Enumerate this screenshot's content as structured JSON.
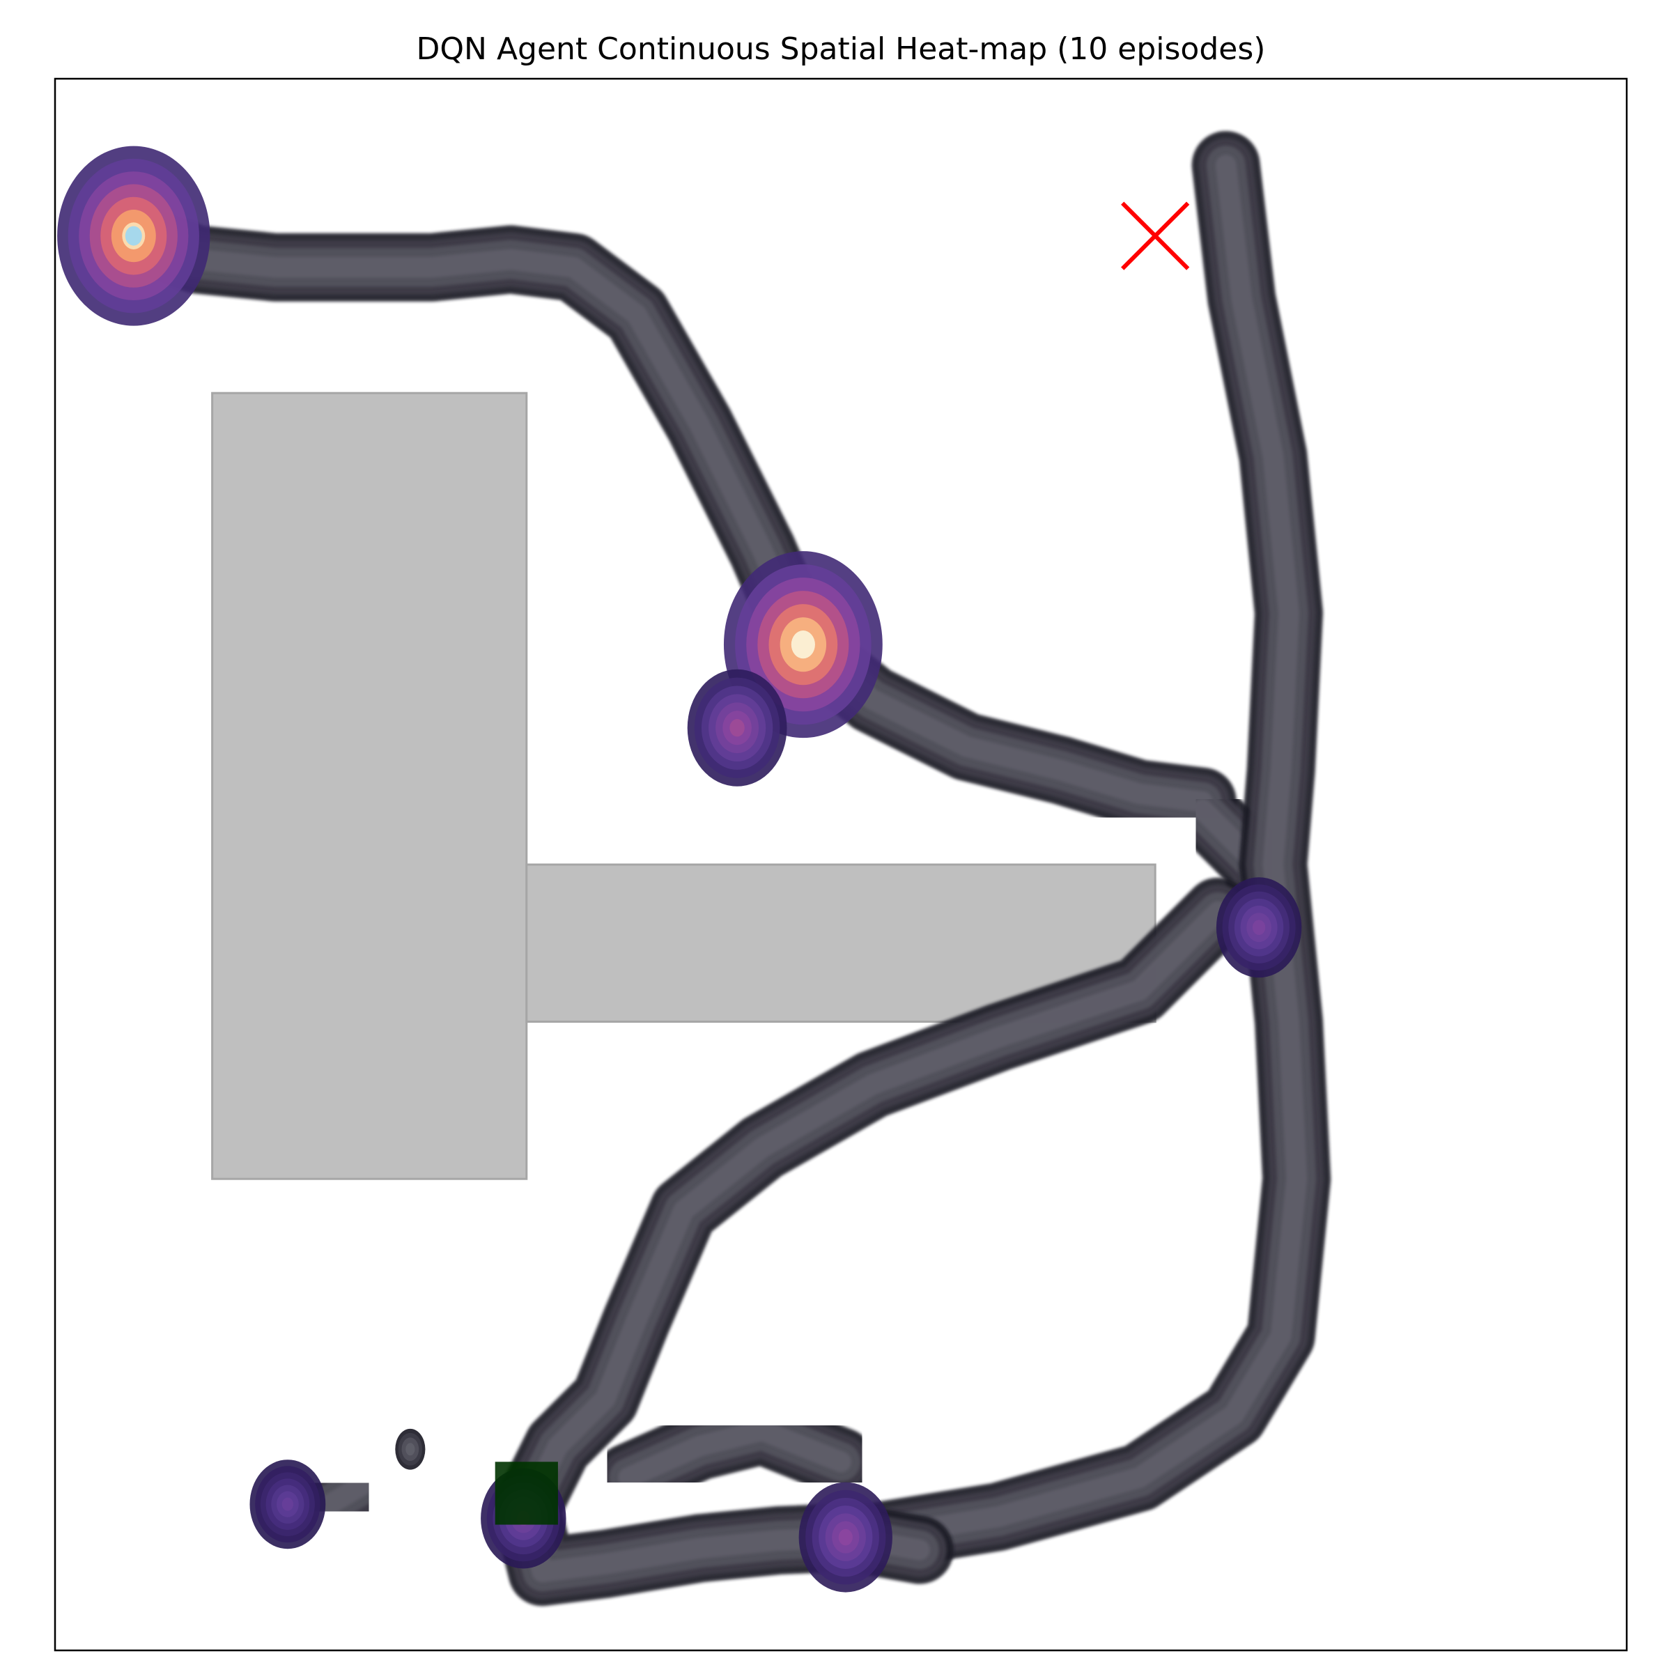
{
  "chart_data": {
    "type": "heatmap",
    "title": "DQN Agent Continuous Spatial Heat-map (10 episodes)",
    "xlabel": "",
    "ylabel": "",
    "xlim": [
      0,
      100
    ],
    "ylim": [
      0,
      100
    ],
    "ticks_visible": false,
    "grid": false,
    "colormap": "magma",
    "obstacles": [
      {
        "name": "obstacle-left-block",
        "x": [
          10,
          30
        ],
        "y": [
          30,
          80
        ]
      },
      {
        "name": "obstacle-horizontal-bar",
        "x": [
          30,
          70
        ],
        "y": [
          40,
          50
        ]
      }
    ],
    "goal": {
      "x": [
        28,
        32
      ],
      "y": [
        8,
        12
      ],
      "color": "#003300"
    },
    "failure_marker": {
      "x": 70,
      "y": 90,
      "symbol": "x",
      "color": "#ff0000"
    },
    "density_peaks": [
      {
        "x": 5,
        "y": 90,
        "level": 0.95
      },
      {
        "x": 47.6,
        "y": 64,
        "level": 1.0
      },
      {
        "x": 43.4,
        "y": 58.7,
        "level": 0.5
      },
      {
        "x": 50.3,
        "y": 7.2,
        "level": 0.45
      },
      {
        "x": 29.8,
        "y": 8.4,
        "level": 0.38
      },
      {
        "x": 76.6,
        "y": 46,
        "level": 0.38
      },
      {
        "x": 14.8,
        "y": 9.3,
        "level": 0.3
      }
    ],
    "trajectory_paths": [
      [
        [
          5,
          90
        ],
        [
          9,
          88.5
        ],
        [
          14,
          88
        ],
        [
          19,
          88
        ],
        [
          24,
          88
        ],
        [
          29,
          88.5
        ],
        [
          33,
          88
        ],
        [
          37,
          85
        ],
        [
          41,
          78
        ],
        [
          45,
          70
        ],
        [
          47.6,
          64
        ]
      ],
      [
        [
          47.6,
          64
        ],
        [
          52,
          60.5
        ],
        [
          58,
          57.5
        ],
        [
          64,
          56
        ],
        [
          69,
          54.5
        ],
        [
          73,
          54
        ]
      ],
      [
        [
          73,
          53.5
        ],
        [
          76.5,
          50
        ],
        [
          77,
          47
        ]
      ],
      [
        [
          74.5,
          94.5
        ],
        [
          75.5,
          86
        ],
        [
          77.5,
          76
        ],
        [
          78.5,
          66
        ],
        [
          78,
          56
        ],
        [
          77.5,
          50
        ],
        [
          78.5,
          40
        ],
        [
          79,
          30
        ],
        [
          78,
          20
        ],
        [
          75,
          15
        ],
        [
          69,
          11
        ],
        [
          60,
          8.5
        ],
        [
          52,
          7.2
        ]
      ],
      [
        [
          74,
          47
        ],
        [
          69,
          42
        ],
        [
          60,
          39
        ],
        [
          52,
          36
        ],
        [
          45,
          32
        ],
        [
          40,
          28
        ],
        [
          37,
          21
        ],
        [
          35,
          16
        ],
        [
          32,
          13
        ],
        [
          30,
          9
        ],
        [
          31,
          5
        ],
        [
          35,
          5.5
        ],
        [
          41,
          6.5
        ],
        [
          46,
          7
        ],
        [
          50.5,
          7.2
        ],
        [
          55,
          6.4
        ]
      ],
      [
        [
          36.5,
          11
        ],
        [
          41,
          13
        ],
        [
          45,
          14
        ],
        [
          50,
          12
        ]
      ],
      [
        [
          14.8,
          9.3
        ],
        [
          17,
          9
        ],
        [
          19.5,
          10.5
        ]
      ],
      [
        [
          22.6,
          12.8
        ]
      ]
    ]
  }
}
